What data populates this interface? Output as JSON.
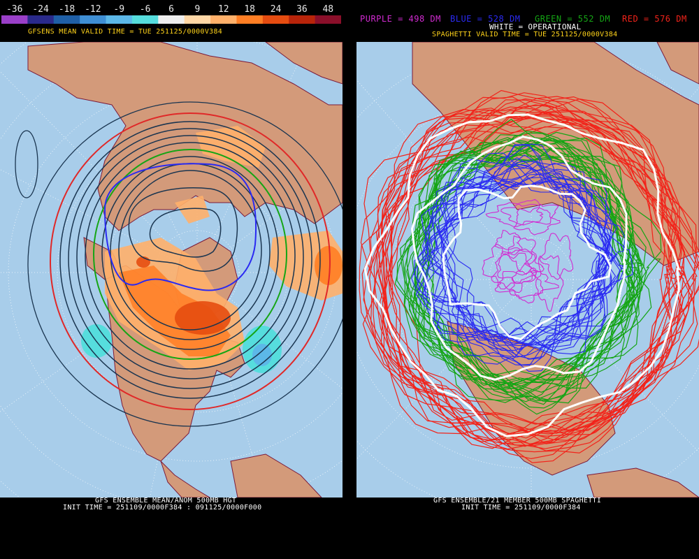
{
  "left_panel": {
    "color_scale": {
      "labels": [
        "-36",
        "-24",
        "-18",
        "-12",
        "-9",
        "-6",
        "6",
        "9",
        "12",
        "18",
        "24",
        "36",
        "48"
      ],
      "colors": [
        "#9a3fc8",
        "#2a2a8a",
        "#1f5fa6",
        "#3f8fd4",
        "#5cb8e8",
        "#56dddd",
        "#eeeeee",
        "#ffd7a6",
        "#ffb06a",
        "#ff7e24",
        "#e54c10",
        "#b8240a",
        "#8a0f2a"
      ]
    },
    "valid_label": "GFSENS MEAN VALID TIME = TUE 251125/0000V384",
    "footer_line1": "GFS ENSEMBLE MEAN/ANOM 500MB HGT",
    "footer_line2": "INIT TIME = 251109/0000F384 : 091125/0000F000"
  },
  "right_panel": {
    "legend": [
      {
        "text": "PURPLE = 498 DM",
        "color": "#d12bd1"
      },
      {
        "text": "BLUE = 528 DM",
        "color": "#2a2af2"
      },
      {
        "text": "GREEN = 552 DM",
        "color": "#15a515"
      },
      {
        "text": "RED = 576 DM",
        "color": "#f2231a"
      }
    ],
    "operational_label": "WHITE = OPERATIONAL",
    "valid_label": "SPAGHETTI VALID TIME = TUE 251125/0000V384",
    "footer_line1": "GFS ENSEMBLE/21 MEMBER 500MB SPAGHETTI",
    "footer_line2": "INIT TIME = 251109/0000F384"
  },
  "colors": {
    "ocean": "#a8cdea",
    "land": "#d39a7a",
    "border": "#7a1a3a",
    "grid": "#ffffff"
  }
}
